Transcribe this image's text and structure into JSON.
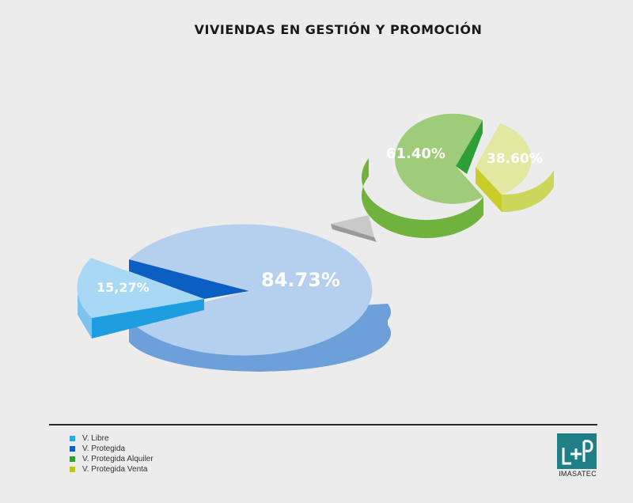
{
  "chart_data": [
    {
      "type": "pie",
      "title": "VIVIENDAS EN GESTIÓN Y PROMOCIÓN",
      "slices": [
        {
          "name": "V. Libre",
          "value": 84.73,
          "label": "84.73%",
          "color": "#b5d0ee",
          "side_color": "#6d9fd8"
        },
        {
          "name": "V. Protegida",
          "value": 15.27,
          "label": "15,27%",
          "color": "#a8d8f4",
          "side_color": "#1e9de0"
        }
      ]
    },
    {
      "type": "pie",
      "slices": [
        {
          "name": "V. Protegida Alquiler",
          "value": 61.4,
          "label": "61.40%",
          "color": "#9fcc78",
          "side_color": "#6fb33e"
        },
        {
          "name": "V. Protegida Venta",
          "value": 38.6,
          "label": "38.60%",
          "color": "#e3e8a0",
          "side_color": "#c8cd2a"
        }
      ]
    }
  ],
  "legend": [
    {
      "label": "V. Libre",
      "color": "#29a8e4"
    },
    {
      "label": "V. Protegida",
      "color": "#0b5fc2"
    },
    {
      "label": "V. Protegida Alquiler",
      "color": "#2e9e36"
    },
    {
      "label": "V. Protegida Venta",
      "color": "#c0c414"
    }
  ],
  "logo": {
    "text": "IMASATEC",
    "color": "#1e7f86"
  }
}
